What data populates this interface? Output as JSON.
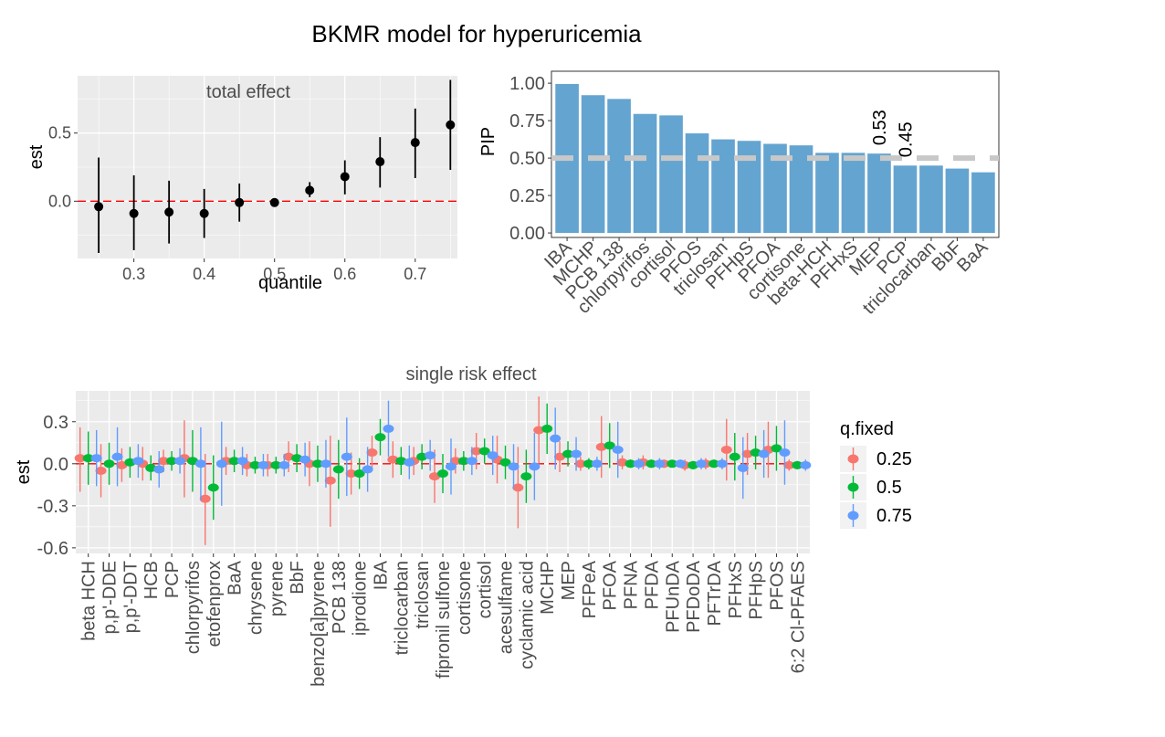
{
  "figure": {
    "title": "BKMR model for hyperuricemia"
  },
  "chart_data": [
    {
      "id": "total",
      "type": "scatter",
      "strip_title": "total effect",
      "xlabel": "quantile",
      "ylabel": "est",
      "xlim": [
        0.22,
        0.76
      ],
      "ylim": [
        -0.42,
        0.92
      ],
      "xticks": [
        0.3,
        0.4,
        0.5,
        0.6,
        0.7
      ],
      "xtick_labels": [
        "0.3",
        "0.4",
        "0.5",
        "0.6",
        "0.7"
      ],
      "yticks": [
        0,
        0.5
      ],
      "ytick_labels": [
        "0.0",
        "0.5"
      ],
      "reference_line": 0,
      "points": [
        {
          "x": 0.25,
          "est": -0.04,
          "lo": -0.38,
          "hi": 0.32
        },
        {
          "x": 0.3,
          "est": -0.09,
          "lo": -0.36,
          "hi": 0.19
        },
        {
          "x": 0.35,
          "est": -0.08,
          "lo": -0.31,
          "hi": 0.15
        },
        {
          "x": 0.4,
          "est": -0.09,
          "lo": -0.27,
          "hi": 0.09
        },
        {
          "x": 0.45,
          "est": -0.01,
          "lo": -0.15,
          "hi": 0.13
        },
        {
          "x": 0.5,
          "est": -0.01,
          "lo": -0.02,
          "hi": 0.01
        },
        {
          "x": 0.55,
          "est": 0.08,
          "lo": 0.03,
          "hi": 0.14
        },
        {
          "x": 0.6,
          "est": 0.18,
          "lo": 0.05,
          "hi": 0.3
        },
        {
          "x": 0.65,
          "est": 0.29,
          "lo": 0.1,
          "hi": 0.47
        },
        {
          "x": 0.7,
          "est": 0.43,
          "lo": 0.17,
          "hi": 0.68
        },
        {
          "x": 0.75,
          "est": 0.56,
          "lo": 0.23,
          "hi": 0.89
        }
      ]
    },
    {
      "id": "pip",
      "type": "bar",
      "ylabel": "PIP",
      "xlabel": "",
      "ylim": [
        -0.03,
        1.08
      ],
      "yticks": [
        0,
        0.25,
        0.5,
        0.75,
        1.0
      ],
      "ytick_labels": [
        "0.00",
        "0.25",
        "0.50",
        "0.75",
        "1.00"
      ],
      "bar_color": "#64A4D0",
      "threshold": 0.5,
      "threshold_color": "#C8C8C8",
      "categories": [
        "IBA",
        "MCHP",
        "PCB 138",
        "chlorpyrifos",
        "cortisol",
        "PFOS",
        "triclosan",
        "PFHpS",
        "PFOA",
        "cortisone",
        "beta-HCH",
        "PFHxS",
        "MEP",
        "PCP",
        "triclocarban",
        "BbF",
        "BaA"
      ],
      "values": [
        0.995,
        0.92,
        0.895,
        0.795,
        0.785,
        0.665,
        0.625,
        0.615,
        0.595,
        0.585,
        0.535,
        0.535,
        0.53,
        0.45,
        0.45,
        0.43,
        0.405
      ],
      "annotations": [
        {
          "category": "MEP",
          "text": "0.53"
        },
        {
          "category": "PCP",
          "text": "0.45"
        }
      ]
    },
    {
      "id": "single",
      "type": "scatter",
      "strip_title": "single risk effect",
      "ylabel": "est",
      "xlabel": "",
      "ylim": [
        -0.64,
        0.52
      ],
      "yticks": [
        -0.6,
        -0.3,
        0.0,
        0.3
      ],
      "ytick_labels": [
        "-0.6",
        "-0.3",
        "0.0",
        "0.3"
      ],
      "reference_line": 0,
      "legend": {
        "title": "q.fixed",
        "position": "right",
        "labels": [
          "0.25",
          "0.5",
          "0.75"
        ],
        "colors": [
          "#F8766D",
          "#00BA38",
          "#619CFF"
        ]
      },
      "categories": [
        "beta HCH",
        "p,p'-DDE",
        "p,p'-DDT",
        "HCB",
        "PCP",
        "chlorpyrifos",
        "etofenprox",
        "BaA",
        "chrysene",
        "pyrene",
        "BbF",
        "benzo[a]pyrene",
        "PCB 138",
        "iprodione",
        "IBA",
        "triclocarban",
        "triclosan",
        "fipronil sulfone",
        "cortisone",
        "cortisol",
        "acesulfame",
        "cyclamic acid",
        "MCHP",
        "MEP",
        "PFPeA",
        "PFOA",
        "PFNA",
        "PFDA",
        "PFUnDA",
        "PFDoDA",
        "PFTrDA",
        "PFHxS",
        "PFHpS",
        "PFOS",
        "6:2 Cl-PFAES"
      ],
      "series": [
        {
          "name": "0.25",
          "color": "#F8766D",
          "points": [
            [
              0.04,
              -0.2,
              0.26
            ],
            [
              -0.05,
              -0.24,
              0.14
            ],
            [
              -0.01,
              -0.13,
              0.11
            ],
            [
              0.0,
              -0.12,
              0.12
            ],
            [
              0.02,
              -0.06,
              0.1
            ],
            [
              0.04,
              -0.24,
              0.31
            ],
            [
              -0.25,
              -0.58,
              0.07
            ],
            [
              0.02,
              -0.08,
              0.12
            ],
            [
              -0.01,
              -0.09,
              0.07
            ],
            [
              -0.01,
              -0.09,
              0.07
            ],
            [
              0.05,
              -0.06,
              0.16
            ],
            [
              0.0,
              -0.16,
              0.16
            ],
            [
              -0.12,
              -0.45,
              0.2
            ],
            [
              -0.07,
              -0.22,
              0.08
            ],
            [
              0.08,
              -0.04,
              0.2
            ],
            [
              0.03,
              -0.1,
              0.16
            ],
            [
              0.02,
              -0.08,
              0.12
            ],
            [
              -0.09,
              -0.28,
              0.1
            ],
            [
              0.02,
              -0.07,
              0.11
            ],
            [
              0.09,
              -0.04,
              0.22
            ],
            [
              0.03,
              -0.14,
              0.2
            ],
            [
              -0.17,
              -0.46,
              0.12
            ],
            [
              0.24,
              0.0,
              0.48
            ],
            [
              0.05,
              -0.06,
              0.16
            ],
            [
              0.0,
              -0.05,
              0.05
            ],
            [
              0.12,
              -0.1,
              0.34
            ],
            [
              0.01,
              -0.04,
              0.06
            ],
            [
              0.01,
              -0.04,
              0.06
            ],
            [
              0.0,
              -0.03,
              0.03
            ],
            [
              -0.01,
              -0.05,
              0.03
            ],
            [
              0.0,
              -0.04,
              0.04
            ],
            [
              0.1,
              -0.12,
              0.32
            ],
            [
              0.07,
              -0.08,
              0.22
            ],
            [
              0.1,
              -0.1,
              0.3
            ],
            [
              -0.01,
              -0.05,
              0.03
            ]
          ]
        },
        {
          "name": "0.5",
          "color": "#00BA38",
          "points": [
            [
              0.04,
              -0.15,
              0.23
            ],
            [
              0.0,
              -0.15,
              0.15
            ],
            [
              0.01,
              -0.1,
              0.12
            ],
            [
              -0.03,
              -0.12,
              0.06
            ],
            [
              0.02,
              -0.05,
              0.09
            ],
            [
              0.02,
              -0.2,
              0.24
            ],
            [
              -0.17,
              -0.4,
              0.06
            ],
            [
              0.02,
              -0.06,
              0.1
            ],
            [
              -0.01,
              -0.07,
              0.05
            ],
            [
              -0.01,
              -0.07,
              0.05
            ],
            [
              0.04,
              -0.06,
              0.14
            ],
            [
              0.0,
              -0.13,
              0.13
            ],
            [
              -0.04,
              -0.25,
              0.17
            ],
            [
              -0.07,
              -0.18,
              0.04
            ],
            [
              0.19,
              0.06,
              0.32
            ],
            [
              0.02,
              -0.08,
              0.12
            ],
            [
              0.05,
              -0.04,
              0.14
            ],
            [
              -0.07,
              -0.21,
              0.07
            ],
            [
              0.02,
              -0.05,
              0.09
            ],
            [
              0.09,
              0.0,
              0.18
            ],
            [
              0.01,
              -0.11,
              0.13
            ],
            [
              -0.09,
              -0.28,
              0.1
            ],
            [
              0.25,
              0.07,
              0.43
            ],
            [
              0.07,
              -0.02,
              0.16
            ],
            [
              0.0,
              -0.04,
              0.04
            ],
            [
              0.13,
              -0.03,
              0.29
            ],
            [
              0.0,
              -0.03,
              0.03
            ],
            [
              0.0,
              -0.03,
              0.03
            ],
            [
              0.0,
              -0.02,
              0.02
            ],
            [
              -0.01,
              -0.04,
              0.02
            ],
            [
              0.0,
              -0.03,
              0.03
            ],
            [
              0.05,
              -0.12,
              0.22
            ],
            [
              0.08,
              -0.04,
              0.2
            ],
            [
              0.11,
              -0.05,
              0.27
            ],
            [
              -0.01,
              -0.04,
              0.02
            ]
          ]
        },
        {
          "name": "0.75",
          "color": "#619CFF",
          "points": [
            [
              0.04,
              -0.16,
              0.24
            ],
            [
              0.05,
              -0.16,
              0.26
            ],
            [
              0.02,
              -0.1,
              0.14
            ],
            [
              -0.04,
              -0.17,
              0.09
            ],
            [
              0.02,
              -0.07,
              0.11
            ],
            [
              0.0,
              -0.26,
              0.26
            ],
            [
              0.0,
              -0.3,
              0.3
            ],
            [
              0.02,
              -0.08,
              0.12
            ],
            [
              -0.01,
              -0.09,
              0.07
            ],
            [
              -0.01,
              -0.09,
              0.07
            ],
            [
              0.03,
              -0.09,
              0.15
            ],
            [
              0.0,
              -0.17,
              0.17
            ],
            [
              0.05,
              -0.23,
              0.33
            ],
            [
              -0.04,
              -0.2,
              0.12
            ],
            [
              0.25,
              0.05,
              0.45
            ],
            [
              0.01,
              -0.11,
              0.13
            ],
            [
              0.06,
              -0.05,
              0.17
            ],
            [
              -0.02,
              -0.22,
              0.18
            ],
            [
              0.02,
              -0.08,
              0.12
            ],
            [
              0.06,
              -0.08,
              0.2
            ],
            [
              -0.02,
              -0.18,
              0.14
            ],
            [
              -0.02,
              -0.26,
              0.22
            ],
            [
              0.18,
              -0.04,
              0.4
            ],
            [
              0.07,
              -0.05,
              0.19
            ],
            [
              0.0,
              -0.05,
              0.05
            ],
            [
              0.1,
              -0.1,
              0.3
            ],
            [
              0.0,
              -0.04,
              0.04
            ],
            [
              0.0,
              -0.04,
              0.04
            ],
            [
              0.0,
              -0.03,
              0.03
            ],
            [
              0.0,
              -0.04,
              0.04
            ],
            [
              0.0,
              -0.04,
              0.04
            ],
            [
              -0.03,
              -0.25,
              0.19
            ],
            [
              0.07,
              -0.1,
              0.24
            ],
            [
              0.08,
              -0.15,
              0.31
            ],
            [
              -0.01,
              -0.05,
              0.03
            ]
          ]
        }
      ]
    }
  ]
}
